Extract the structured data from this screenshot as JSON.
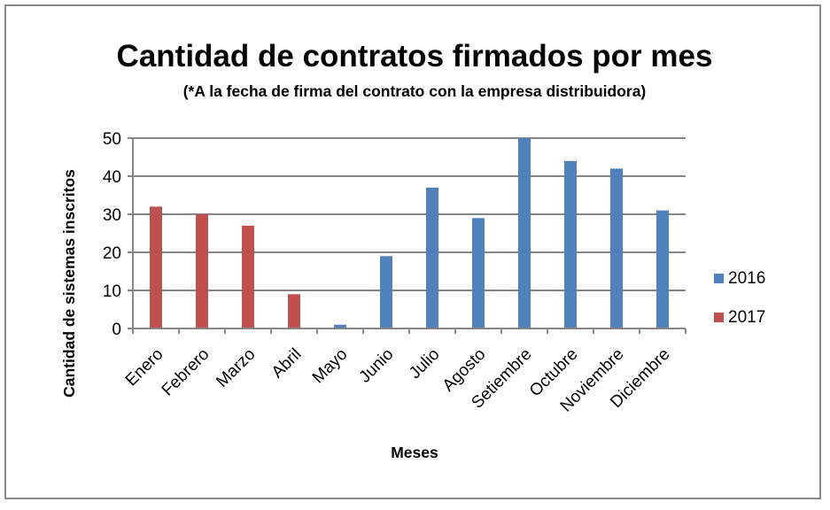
{
  "chart_data": {
    "type": "bar",
    "title": "Cantidad de contratos firmados por mes",
    "subtitle": "(*A la fecha de firma del contrato con la empresa distribuidora)",
    "xlabel": "Meses",
    "ylabel": "Cantidad de sistemas inscritos",
    "categories": [
      "Enero",
      "Febrero",
      "Marzo",
      "Abril",
      "Mayo",
      "Junio",
      "Julio",
      "Agosto",
      "Setiembre",
      "Octubre",
      "Noviembre",
      "Diciembre"
    ],
    "series": [
      {
        "name": "2016",
        "color": "#4f81bd",
        "values": [
          null,
          null,
          null,
          null,
          1,
          19,
          37,
          29,
          50,
          44,
          42,
          31
        ]
      },
      {
        "name": "2017",
        "color": "#c0504d",
        "values": [
          32,
          30,
          27,
          9,
          null,
          null,
          null,
          null,
          null,
          null,
          null,
          null
        ]
      }
    ],
    "ylim": [
      0,
      50
    ],
    "yticks": [
      0,
      10,
      20,
      30,
      40,
      50
    ],
    "grid": true,
    "legend": "right"
  }
}
